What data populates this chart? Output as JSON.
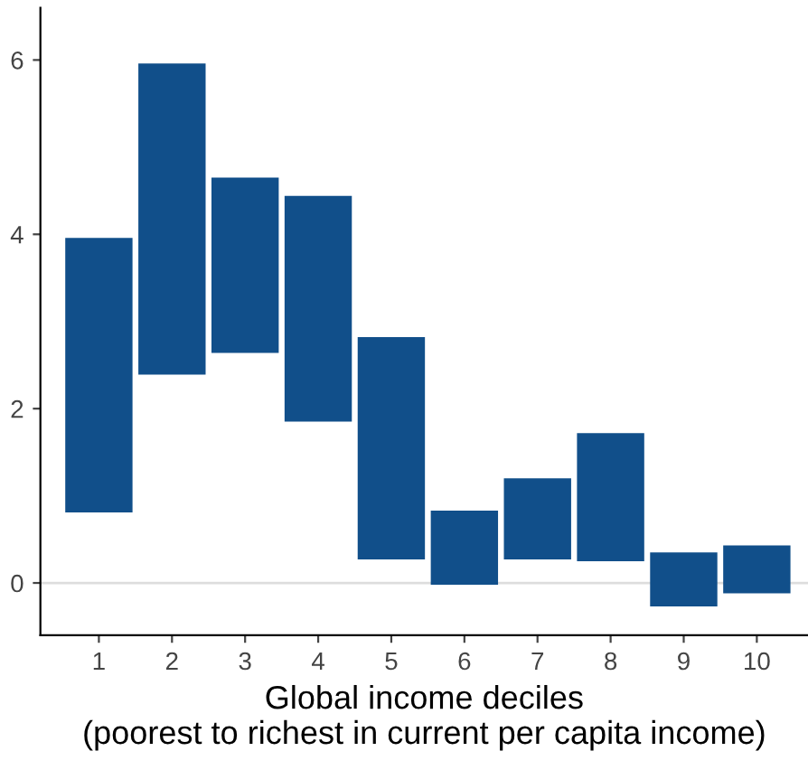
{
  "chart_data": {
    "type": "bar",
    "xlabel": "Global income deciles\n(poorest to richest in current per capita income)",
    "categories": [
      "1",
      "2",
      "3",
      "4",
      "5",
      "6",
      "7",
      "8",
      "9",
      "10"
    ],
    "base": [
      0.81,
      2.39,
      2.64,
      1.85,
      0.27,
      -0.02,
      0.27,
      0.25,
      -0.27,
      -0.12
    ],
    "values": [
      3.15,
      3.57,
      2.01,
      2.59,
      2.55,
      0.85,
      0.93,
      1.47,
      0.62,
      0.55
    ],
    "color": "#114f8a",
    "ylim": [
      -0.6,
      6.6
    ],
    "yticks": [
      0,
      2,
      4,
      6
    ],
    "ref_lines": [
      {
        "axis": "y",
        "value": 0,
        "color": "#dddddd"
      }
    ],
    "grid": false
  }
}
